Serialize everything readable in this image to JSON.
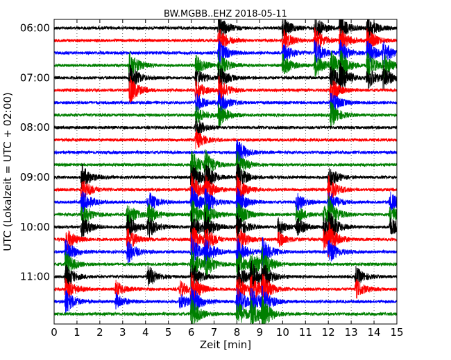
{
  "chart_data": {
    "type": "line",
    "title": "BW.MGBB..EHZ 2018-05-11",
    "xlabel": "Zeit  [min]",
    "ylabel": "UTC (Lokalzeit = UTC + 02:00)",
    "xlim": [
      0,
      15
    ],
    "x_ticks": [
      "0",
      "1",
      "2",
      "3",
      "4",
      "5",
      "6",
      "7",
      "8",
      "9",
      "10",
      "11",
      "12",
      "13",
      "14",
      "15"
    ],
    "y_ticks": [
      "06:00",
      "07:00",
      "08:00",
      "09:00",
      "10:00",
      "11:00"
    ],
    "y_tick_rows": [
      0,
      4,
      8,
      12,
      16,
      20
    ],
    "trace_interval_min": 15,
    "row_count": 24,
    "grid": true,
    "series_colors": [
      "#000000",
      "#ff0000",
      "#0000ff",
      "#008000"
    ],
    "events": [
      {
        "x": 6.0,
        "rows": [
          11,
          12,
          13,
          14,
          15,
          16,
          17,
          18,
          19,
          20,
          21,
          22,
          23
        ],
        "amp": 1.0
      },
      {
        "x": 6.2,
        "rows": [
          3,
          4,
          5,
          6,
          7,
          8,
          9
        ],
        "amp": 0.6
      },
      {
        "x": 6.6,
        "rows": [
          11,
          12,
          13,
          14,
          15,
          16,
          17,
          18,
          19
        ],
        "amp": 0.8
      },
      {
        "x": 7.2,
        "rows": [
          0,
          1,
          2,
          3,
          4,
          5,
          6,
          7
        ],
        "amp": 0.8
      },
      {
        "x": 8.0,
        "rows": [
          10,
          11,
          12,
          13,
          14,
          15,
          16,
          17,
          18,
          19,
          20,
          21,
          22,
          23
        ],
        "amp": 0.9
      },
      {
        "x": 8.6,
        "rows": [
          19,
          20,
          21,
          22,
          23
        ],
        "amp": 0.9
      },
      {
        "x": 9.1,
        "rows": [
          18,
          19,
          20,
          21,
          22,
          23
        ],
        "amp": 0.9
      },
      {
        "x": 3.3,
        "rows": [
          3,
          4,
          5
        ],
        "amp": 0.9
      },
      {
        "x": 3.2,
        "rows": [
          15,
          16,
          17,
          18
        ],
        "amp": 0.8
      },
      {
        "x": 1.2,
        "rows": [
          12,
          13,
          14,
          15,
          16
        ],
        "amp": 0.8
      },
      {
        "x": 0.5,
        "rows": [
          17,
          18,
          19,
          20,
          21,
          22
        ],
        "amp": 0.8
      },
      {
        "x": 4.1,
        "rows": [
          14,
          15,
          16,
          20
        ],
        "amp": 0.7
      },
      {
        "x": 10.0,
        "rows": [
          0,
          1,
          2,
          3
        ],
        "amp": 0.7
      },
      {
        "x": 11.4,
        "rows": [
          0,
          1,
          2,
          3
        ],
        "amp": 0.8
      },
      {
        "x": 12.1,
        "rows": [
          3,
          4,
          5,
          6,
          7
        ],
        "amp": 0.8
      },
      {
        "x": 12.5,
        "rows": [
          0,
          1,
          2,
          3,
          4
        ],
        "amp": 0.8
      },
      {
        "x": 12.0,
        "rows": [
          12,
          13,
          14,
          15,
          16,
          17,
          18
        ],
        "amp": 0.8
      },
      {
        "x": 13.7,
        "rows": [
          0,
          1,
          2,
          3,
          4
        ],
        "amp": 0.8
      },
      {
        "x": 14.4,
        "rows": [
          2,
          3,
          4
        ],
        "amp": 0.7
      },
      {
        "x": 14.7,
        "rows": [
          14,
          15,
          16
        ],
        "amp": 0.6
      },
      {
        "x": 10.6,
        "rows": [
          14,
          15,
          16
        ],
        "amp": 0.6
      },
      {
        "x": 13.2,
        "rows": [
          20,
          21
        ],
        "amp": 0.6
      },
      {
        "x": 11.8,
        "rows": [
          15,
          16,
          17
        ],
        "amp": 0.6
      },
      {
        "x": 2.7,
        "rows": [
          21,
          22
        ],
        "amp": 0.5
      },
      {
        "x": 5.5,
        "rows": [
          21,
          22
        ],
        "amp": 0.5
      },
      {
        "x": 9.8,
        "rows": [
          16,
          17
        ],
        "amp": 0.5
      }
    ]
  }
}
